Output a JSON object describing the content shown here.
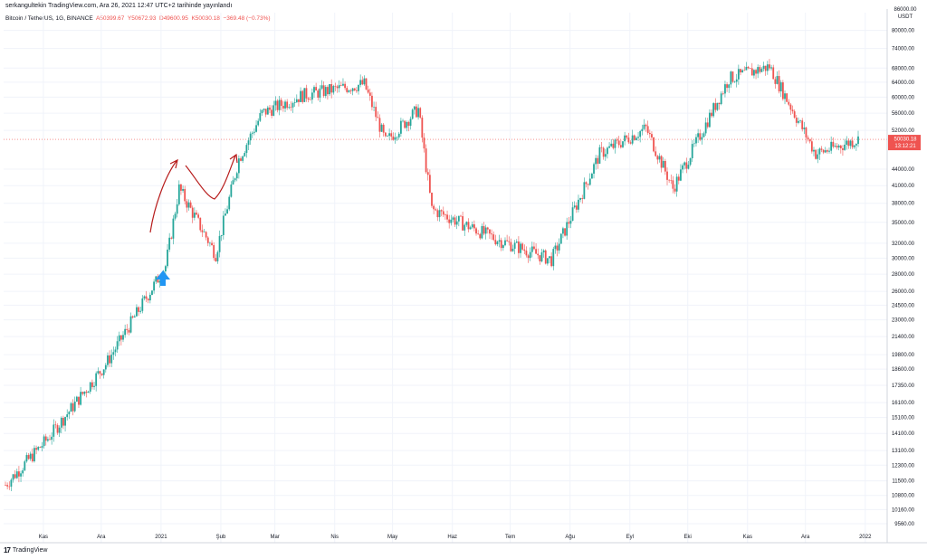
{
  "header": {
    "publish_line": "serkangultekin TradingView.com, Ara 26, 2021 12:47 UTC+2 tarihinde yayınlandı",
    "symbol": "Bitcoin / TetherUS, 1G, BINANCE",
    "open_label": "A50399.67",
    "high_label": "Y50672.93",
    "low_label": "D49600.95",
    "close_label": "K50030.18",
    "change_label": "−369.48 (−0.73%)"
  },
  "price_axis": {
    "currency": "USDT",
    "top_label": "86000.00",
    "ticks": [
      "80000.00",
      "74000.00",
      "68000.00",
      "64000.00",
      "60000.00",
      "56000.00",
      "52000.00",
      "44000.00",
      "41000.00",
      "38000.00",
      "35000.00",
      "32000.00",
      "30000.00",
      "28000.00",
      "26000.00",
      "24500.00",
      "23000.00",
      "21400.00",
      "19800.00",
      "18600.00",
      "17350.00",
      "16100.00",
      "15100.00",
      "14100.00",
      "13100.00",
      "12300.00",
      "11500.00",
      "10800.00",
      "10160.00",
      "9560.00"
    ],
    "last_price_label": "50030.18",
    "countdown_label": "13:12:21"
  },
  "time_axis": {
    "labels": [
      "Kas",
      "Ara",
      "2021",
      "Şub",
      "Mar",
      "Nis",
      "May",
      "Haz",
      "Tem",
      "Ağu",
      "Eyl",
      "Eki",
      "Kas",
      "Ara",
      "2022"
    ]
  },
  "footer": {
    "logo_text": "TradingView",
    "logo_mark": "17"
  },
  "colors": {
    "up": "#26a69a",
    "down": "#ef5350",
    "arrow": "#2196f3",
    "drawing": "#b71c1c",
    "grid": "#f0f3fa"
  },
  "chart_data": {
    "type": "candlestick",
    "title": "Bitcoin / TetherUS, 1G, BINANCE",
    "scale": "log",
    "ylim": [
      9000,
      86000
    ],
    "last_price": 50030.18,
    "x_start": "2020-10-10",
    "x_end": "2021-12-26",
    "monthly_closes": [
      {
        "date": "2020-10-10",
        "close": 11300
      },
      {
        "date": "2020-11-01",
        "close": 13800
      },
      {
        "date": "2020-12-01",
        "close": 19000
      },
      {
        "date": "2021-01-01",
        "close": 29000
      },
      {
        "date": "2021-01-08",
        "close": 40500
      },
      {
        "date": "2021-01-27",
        "close": 30500
      },
      {
        "date": "2021-02-08",
        "close": 46000
      },
      {
        "date": "2021-02-20",
        "close": 56000
      },
      {
        "date": "2021-03-13",
        "close": 60500
      },
      {
        "date": "2021-04-14",
        "close": 63500
      },
      {
        "date": "2021-04-25",
        "close": 49500
      },
      {
        "date": "2021-05-12",
        "close": 57000
      },
      {
        "date": "2021-05-19",
        "close": 37000
      },
      {
        "date": "2021-06-22",
        "close": 32500
      },
      {
        "date": "2021-07-20",
        "close": 29800
      },
      {
        "date": "2021-08-14",
        "close": 47000
      },
      {
        "date": "2021-09-07",
        "close": 52500
      },
      {
        "date": "2021-09-21",
        "close": 40500
      },
      {
        "date": "2021-10-20",
        "close": 65000
      },
      {
        "date": "2021-11-10",
        "close": 68500
      },
      {
        "date": "2021-12-04",
        "close": 47000
      },
      {
        "date": "2021-12-26",
        "close": 50030
      }
    ]
  }
}
